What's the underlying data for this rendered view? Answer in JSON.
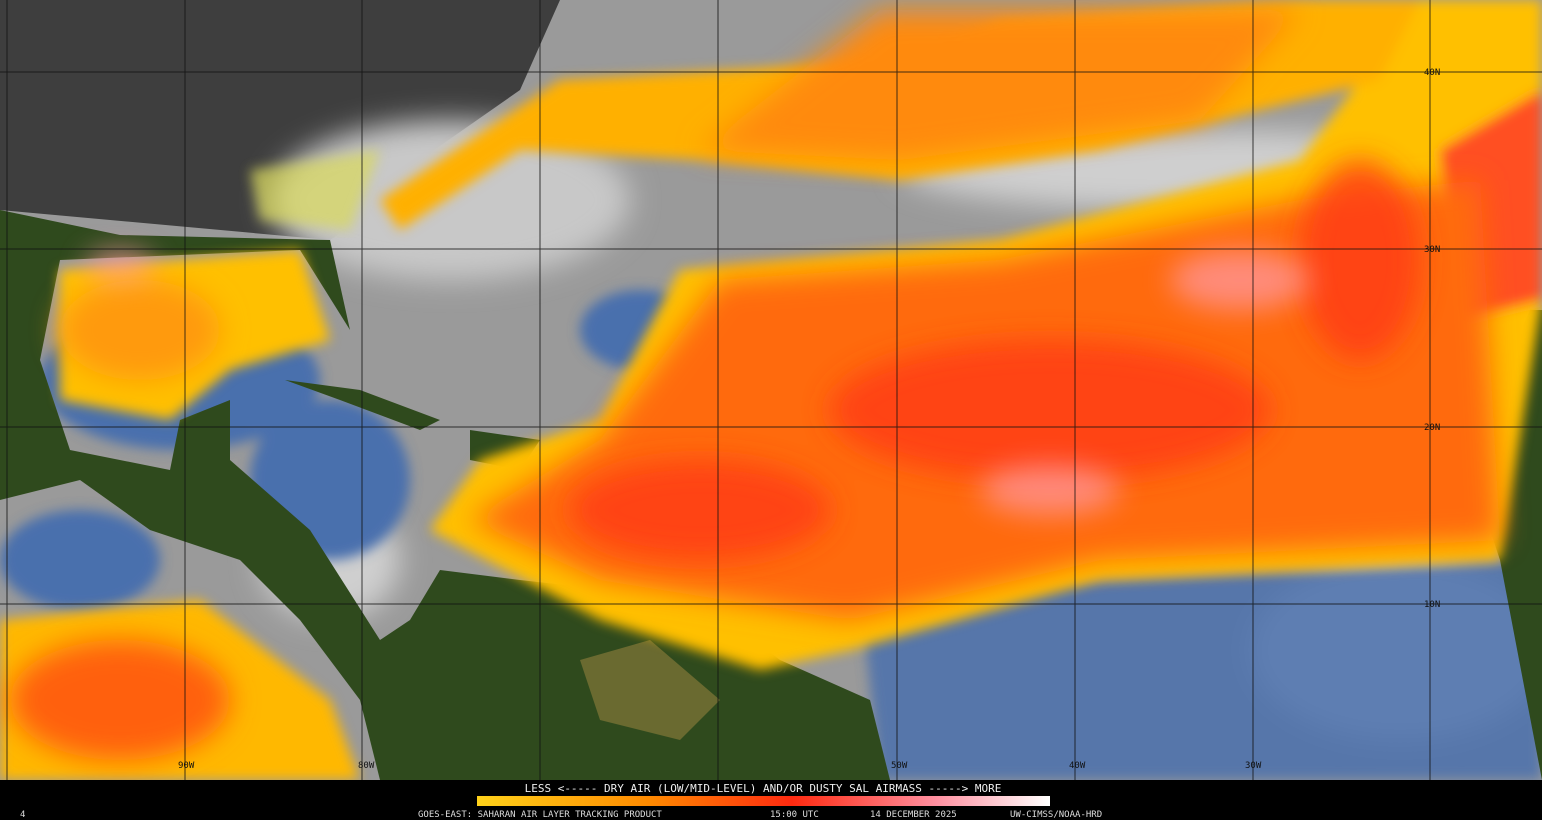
{
  "map": {
    "lat_labels": [
      "40N",
      "30N",
      "20N",
      "10N"
    ],
    "lon_labels": [
      "90W",
      "80W",
      "50W",
      "40W",
      "30W"
    ]
  },
  "legend": {
    "caption": "LESS <----- DRY AIR (LOW/MID-LEVEL) AND/OR DUSTY SAL AIRMASS -----> MORE"
  },
  "footer": {
    "frame": "4",
    "product": "GOES-EAST: SAHARAN AIR LAYER TRACKING PRODUCT",
    "time": "15:00 UTC",
    "date": "14 DECEMBER 2025",
    "credit": "UW-CIMSS/NOAA-HRD"
  }
}
